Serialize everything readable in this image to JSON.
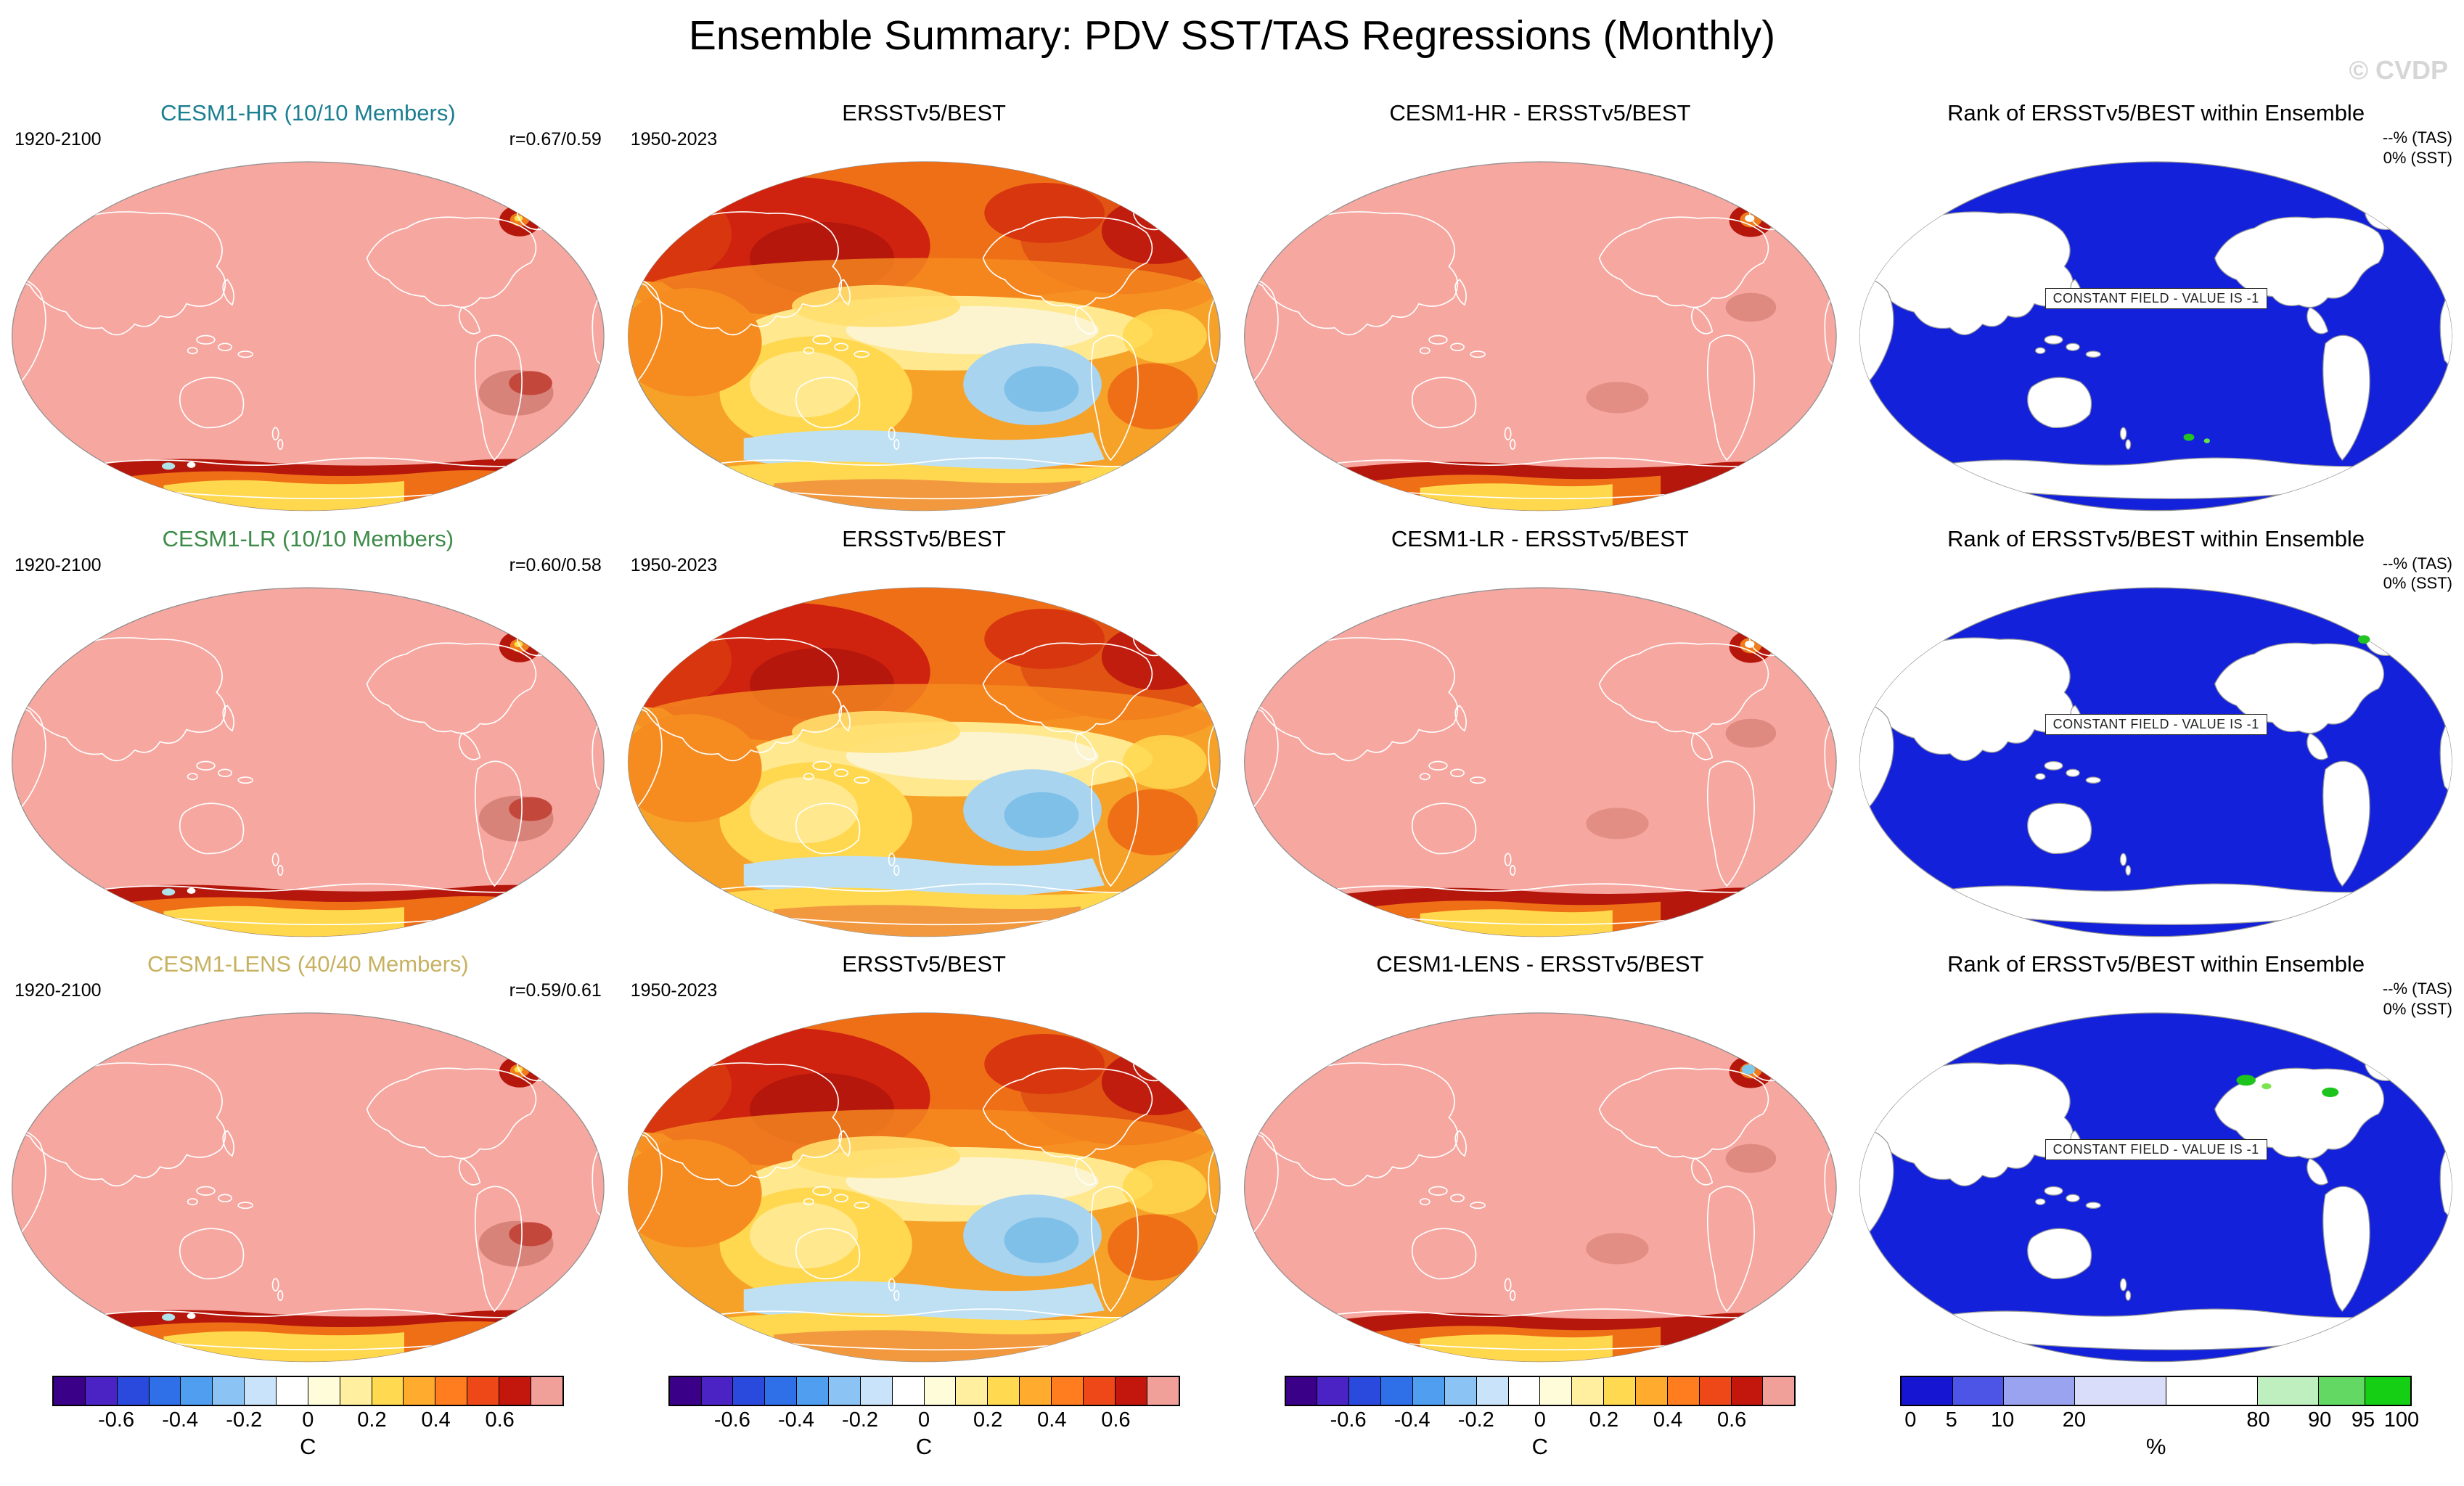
{
  "header": {
    "title": "Ensemble Summary: PDV SST/TAS Regressions (Monthly)",
    "watermark": "© CVDP"
  },
  "rows": [
    {
      "model_color": "#1b7e91",
      "panels": [
        {
          "title": "CESM1-HR (10/10 Members)",
          "left_label": "1920-2100",
          "right_label": "r=0.67/0.59"
        },
        {
          "title": "ERSSTv5/BEST",
          "left_label": "1950-2023"
        },
        {
          "title": "CESM1-HR - ERSSTv5/BEST"
        },
        {
          "title": "Rank of ERSSTv5/BEST within Ensemble",
          "note_tas": "--% (TAS)",
          "note_sst": "0% (SST)",
          "overlay_label": "CONSTANT FIELD - VALUE IS -1"
        }
      ]
    },
    {
      "model_color": "#3c8b48",
      "panels": [
        {
          "title": "CESM1-LR (10/10 Members)",
          "left_label": "1920-2100",
          "right_label": "r=0.60/0.58"
        },
        {
          "title": "ERSSTv5/BEST",
          "left_label": "1950-2023"
        },
        {
          "title": "CESM1-LR - ERSSTv5/BEST"
        },
        {
          "title": "Rank of ERSSTv5/BEST within Ensemble",
          "note_tas": "--% (TAS)",
          "note_sst": "0% (SST)",
          "overlay_label": "CONSTANT FIELD - VALUE IS -1"
        }
      ]
    },
    {
      "model_color": "#c7b161",
      "panels": [
        {
          "title": "CESM1-LENS (40/40 Members)",
          "left_label": "1920-2100",
          "right_label": "r=0.59/0.61"
        },
        {
          "title": "ERSSTv5/BEST",
          "left_label": "1950-2023"
        },
        {
          "title": "CESM1-LENS - ERSSTv5/BEST"
        },
        {
          "title": "Rank of ERSSTv5/BEST within Ensemble",
          "note_tas": "--% (TAS)",
          "note_sst": "0% (SST)",
          "overlay_label": "CONSTANT FIELD - VALUE IS -1"
        }
      ]
    }
  ],
  "colorbars": {
    "order": [
      "regression",
      "regression",
      "regression",
      "rank"
    ],
    "defs": {
      "regression": {
        "unit": "C",
        "segments": [
          {
            "color": "#3a0087",
            "w": 1
          },
          {
            "color": "#4b23c4",
            "w": 1
          },
          {
            "color": "#2a49dd",
            "w": 1
          },
          {
            "color": "#2f6fe8",
            "w": 1
          },
          {
            "color": "#4f9ef0",
            "w": 1
          },
          {
            "color": "#8cc3f5",
            "w": 1
          },
          {
            "color": "#c9e4fa",
            "w": 1
          },
          {
            "color": "#ffffff",
            "w": 1
          },
          {
            "color": "#fffcda",
            "w": 1
          },
          {
            "color": "#ffef9e",
            "w": 1
          },
          {
            "color": "#ffd94f",
            "w": 1
          },
          {
            "color": "#ffab2e",
            "w": 1
          },
          {
            "color": "#ff7d1f",
            "w": 1
          },
          {
            "color": "#ef4818",
            "w": 1
          },
          {
            "color": "#c3160c",
            "w": 1
          },
          {
            "color": "#f0a099",
            "w": 1
          }
        ],
        "ticks": [
          {
            "label": "-0.6",
            "pos": 0.125
          },
          {
            "label": "-0.4",
            "pos": 0.25
          },
          {
            "label": "-0.2",
            "pos": 0.375
          },
          {
            "label": "0",
            "pos": 0.5
          },
          {
            "label": "0.2",
            "pos": 0.625
          },
          {
            "label": "0.4",
            "pos": 0.75
          },
          {
            "label": "0.6",
            "pos": 0.875
          }
        ]
      },
      "rank": {
        "unit": "%",
        "segments": [
          {
            "color": "#1515d2",
            "w": 10
          },
          {
            "color": "#4d55e6",
            "w": 10
          },
          {
            "color": "#9aa3f0",
            "w": 14
          },
          {
            "color": "#d9ddfa",
            "w": 18
          },
          {
            "color": "#ffffff",
            "w": 18
          },
          {
            "color": "#bfeebf",
            "w": 12
          },
          {
            "color": "#63d863",
            "w": 9
          },
          {
            "color": "#14cf14",
            "w": 9
          }
        ],
        "ticks": [
          {
            "label": "0",
            "pos": 0.02
          },
          {
            "label": "5",
            "pos": 0.1
          },
          {
            "label": "10",
            "pos": 0.2
          },
          {
            "label": "20",
            "pos": 0.34
          },
          {
            "label": "80",
            "pos": 0.7
          },
          {
            "label": "90",
            "pos": 0.82
          },
          {
            "label": "95",
            "pos": 0.905
          },
          {
            "label": "100",
            "pos": 0.98
          }
        ]
      }
    }
  },
  "chart_data": {
    "type": "heatmap",
    "title": "Ensemble Summary: PDV SST/TAS Regressions (Monthly)",
    "grid_rows": 3,
    "grid_cols": 4,
    "panels": [
      {
        "row": 1,
        "col": 1,
        "title": "CESM1-HR (10/10 Members)",
        "period": "1920-2100",
        "pattern_correlation": "r=0.67/0.59"
      },
      {
        "row": 1,
        "col": 2,
        "title": "ERSSTv5/BEST",
        "period": "1950-2023"
      },
      {
        "row": 1,
        "col": 3,
        "title": "CESM1-HR - ERSSTv5/BEST"
      },
      {
        "row": 1,
        "col": 4,
        "title": "Rank of ERSSTv5/BEST within Ensemble",
        "tas_rank": "--% (TAS)",
        "sst_rank": "0% (SST)",
        "annotation": "CONSTANT FIELD - VALUE IS -1"
      },
      {
        "row": 2,
        "col": 1,
        "title": "CESM1-LR (10/10 Members)",
        "period": "1920-2100",
        "pattern_correlation": "r=0.60/0.58"
      },
      {
        "row": 2,
        "col": 2,
        "title": "ERSSTv5/BEST",
        "period": "1950-2023"
      },
      {
        "row": 2,
        "col": 3,
        "title": "CESM1-LR - ERSSTv5/BEST"
      },
      {
        "row": 2,
        "col": 4,
        "title": "Rank of ERSSTv5/BEST within Ensemble",
        "tas_rank": "--% (TAS)",
        "sst_rank": "0% (SST)",
        "annotation": "CONSTANT FIELD - VALUE IS -1"
      },
      {
        "row": 3,
        "col": 1,
        "title": "CESM1-LENS (40/40 Members)",
        "period": "1920-2100",
        "pattern_correlation": "r=0.59/0.61"
      },
      {
        "row": 3,
        "col": 2,
        "title": "ERSSTv5/BEST",
        "period": "1950-2023"
      },
      {
        "row": 3,
        "col": 3,
        "title": "CESM1-LENS - ERSSTv5/BEST"
      },
      {
        "row": 3,
        "col": 4,
        "title": "Rank of ERSSTv5/BEST within Ensemble",
        "tas_rank": "--% (TAS)",
        "sst_rank": "0% (SST)",
        "annotation": "CONSTANT FIELD - VALUE IS -1"
      }
    ],
    "regression_colorbar": {
      "unit": "C",
      "tick_values": [
        -0.6,
        -0.4,
        -0.2,
        0,
        0.2,
        0.4,
        0.6
      ]
    },
    "rank_colorbar": {
      "unit": "%",
      "tick_values": [
        0,
        5,
        10,
        20,
        80,
        90,
        95,
        100
      ]
    }
  }
}
